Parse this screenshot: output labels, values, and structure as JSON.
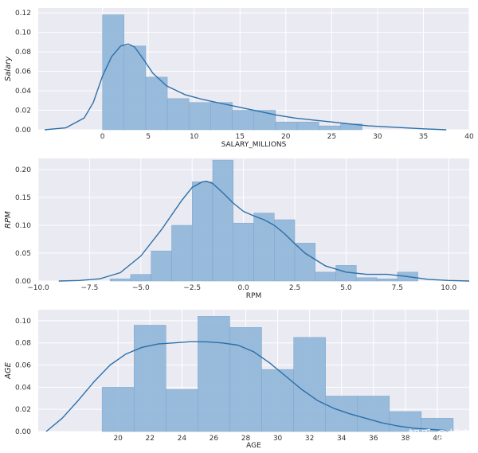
{
  "colors": {
    "plot_background": "#eaeaf2",
    "grid": "#ffffff",
    "bar_fill": "#8fb5d8",
    "bar_stroke": "#7ba6cf",
    "kde_line": "#2b6fa8"
  },
  "watermark": "知乎 @胡言",
  "chart_data": [
    {
      "type": "bar",
      "xlabel": "SALARY_MILLIONS",
      "ylabel": "Salary",
      "xlim": [
        -7,
        40
      ],
      "ylim": [
        0,
        0.125
      ],
      "xticks": [
        0,
        5,
        10,
        15,
        20,
        25,
        30,
        35,
        40
      ],
      "xtick_labels": [
        "0",
        "5",
        "10",
        "15",
        "20",
        "25",
        "30",
        "35",
        "40"
      ],
      "yticks": [
        0.0,
        0.02,
        0.04,
        0.06,
        0.08,
        0.1,
        0.12
      ],
      "ytick_labels": [
        "0.00",
        "0.02",
        "0.04",
        "0.06",
        "0.08",
        "0.10",
        "0.12"
      ],
      "bins": [
        {
          "x0": 0.0,
          "x1": 2.36,
          "value": 0.118
        },
        {
          "x0": 2.36,
          "x1": 4.72,
          "value": 0.086
        },
        {
          "x0": 4.72,
          "x1": 7.08,
          "value": 0.054
        },
        {
          "x0": 7.08,
          "x1": 9.44,
          "value": 0.032
        },
        {
          "x0": 9.44,
          "x1": 11.8,
          "value": 0.028
        },
        {
          "x0": 11.8,
          "x1": 14.16,
          "value": 0.028
        },
        {
          "x0": 14.16,
          "x1": 16.52,
          "value": 0.02
        },
        {
          "x0": 16.52,
          "x1": 18.88,
          "value": 0.02
        },
        {
          "x0": 18.88,
          "x1": 21.24,
          "value": 0.008
        },
        {
          "x0": 21.24,
          "x1": 23.6,
          "value": 0.008
        },
        {
          "x0": 23.6,
          "x1": 25.96,
          "value": 0.004
        },
        {
          "x0": 25.96,
          "x1": 28.32,
          "value": 0.006
        }
      ],
      "kde": {
        "x": [
          -6.3,
          -4,
          -2,
          -1,
          0,
          1,
          2,
          2.8,
          3.5,
          4.5,
          5.5,
          7,
          9,
          11,
          13,
          15,
          17,
          19,
          21,
          23,
          25,
          27,
          29,
          31,
          33,
          35,
          37.5
        ],
        "y": [
          0.0,
          0.002,
          0.012,
          0.028,
          0.055,
          0.075,
          0.086,
          0.088,
          0.085,
          0.072,
          0.058,
          0.045,
          0.036,
          0.031,
          0.027,
          0.023,
          0.019,
          0.015,
          0.012,
          0.01,
          0.008,
          0.006,
          0.004,
          0.003,
          0.002,
          0.001,
          0.0
        ]
      }
    },
    {
      "type": "bar",
      "xlabel": "RPM",
      "ylabel": "RPM",
      "xlim": [
        -10.0,
        11.0
      ],
      "ylim": [
        0,
        0.22
      ],
      "xticks": [
        -10.0,
        -7.5,
        -5.0,
        -2.5,
        0.0,
        2.5,
        5.0,
        7.5,
        10.0
      ],
      "xtick_labels": [
        "−10.0",
        "−7.5",
        "−5.0",
        "−2.5",
        "0.0",
        "2.5",
        "5.0",
        "7.5",
        "10.0"
      ],
      "yticks": [
        0.0,
        0.05,
        0.1,
        0.15,
        0.2
      ],
      "ytick_labels": [
        "0.00",
        "0.05",
        "0.10",
        "0.15",
        "0.20"
      ],
      "bins": [
        {
          "x0": -6.5,
          "x1": -5.5,
          "value": 0.004
        },
        {
          "x0": -5.5,
          "x1": -4.5,
          "value": 0.012
        },
        {
          "x0": -4.5,
          "x1": -3.5,
          "value": 0.054
        },
        {
          "x0": -3.5,
          "x1": -2.5,
          "value": 0.1
        },
        {
          "x0": -2.5,
          "x1": -1.5,
          "value": 0.178
        },
        {
          "x0": -1.5,
          "x1": -0.5,
          "value": 0.217
        },
        {
          "x0": -0.5,
          "x1": 0.5,
          "value": 0.104
        },
        {
          "x0": 0.5,
          "x1": 1.5,
          "value": 0.122
        },
        {
          "x0": 1.5,
          "x1": 2.5,
          "value": 0.11
        },
        {
          "x0": 2.5,
          "x1": 3.5,
          "value": 0.068
        },
        {
          "x0": 3.5,
          "x1": 4.5,
          "value": 0.016
        },
        {
          "x0": 4.5,
          "x1": 5.5,
          "value": 0.028
        },
        {
          "x0": 5.5,
          "x1": 6.5,
          "value": 0.006
        },
        {
          "x0": 6.5,
          "x1": 7.5,
          "value": 0.004
        },
        {
          "x0": 7.5,
          "x1": 8.5,
          "value": 0.016
        }
      ],
      "kde": {
        "x": [
          -9,
          -8,
          -7,
          -6,
          -5,
          -4,
          -3,
          -2.5,
          -2,
          -1.8,
          -1.5,
          -1,
          -0.5,
          0,
          0.5,
          1,
          1.5,
          2,
          2.5,
          3,
          4,
          5,
          6,
          7,
          8,
          9,
          10,
          11
        ],
        "y": [
          0.0,
          0.001,
          0.004,
          0.015,
          0.045,
          0.092,
          0.145,
          0.168,
          0.178,
          0.179,
          0.175,
          0.158,
          0.14,
          0.125,
          0.117,
          0.11,
          0.1,
          0.085,
          0.067,
          0.05,
          0.027,
          0.016,
          0.012,
          0.012,
          0.008,
          0.003,
          0.001,
          0.0
        ]
      }
    },
    {
      "type": "bar",
      "xlabel": "AGE",
      "ylabel": "AGE",
      "xlim": [
        15,
        42
      ],
      "ylim": [
        0,
        0.11
      ],
      "xticks": [
        20,
        22,
        24,
        26,
        28,
        30,
        32,
        34,
        36,
        38,
        40
      ],
      "xtick_labels": [
        "20",
        "22",
        "24",
        "26",
        "28",
        "30",
        "32",
        "34",
        "36",
        "38",
        "40"
      ],
      "yticks": [
        0.0,
        0.02,
        0.04,
        0.06,
        0.08,
        0.1
      ],
      "ytick_labels": [
        "0.00",
        "0.02",
        "0.04",
        "0.06",
        "0.08",
        "0.10"
      ],
      "bins": [
        {
          "x0": 19.0,
          "x1": 21.0,
          "value": 0.04
        },
        {
          "x0": 21.0,
          "x1": 23.0,
          "value": 0.096
        },
        {
          "x0": 23.0,
          "x1": 25.0,
          "value": 0.038
        },
        {
          "x0": 25.0,
          "x1": 27.0,
          "value": 0.104
        },
        {
          "x0": 27.0,
          "x1": 29.0,
          "value": 0.094
        },
        {
          "x0": 29.0,
          "x1": 31.0,
          "value": 0.056
        },
        {
          "x0": 31.0,
          "x1": 33.0,
          "value": 0.085
        },
        {
          "x0": 33.0,
          "x1": 35.0,
          "value": 0.032
        },
        {
          "x0": 35.0,
          "x1": 37.0,
          "value": 0.032
        },
        {
          "x0": 37.0,
          "x1": 39.0,
          "value": 0.018
        },
        {
          "x0": 39.0,
          "x1": 41.0,
          "value": 0.012
        }
      ],
      "kde": {
        "x": [
          15.5,
          16.5,
          17.5,
          18.5,
          19.5,
          20.5,
          21.5,
          22.5,
          23.5,
          24.5,
          25.5,
          26.5,
          27.5,
          28.5,
          29.5,
          30.5,
          31.5,
          32.5,
          33.5,
          34.5,
          35.5,
          36.5,
          37.5,
          38.5,
          39.5,
          40.5
        ],
        "y": [
          0.0,
          0.012,
          0.028,
          0.045,
          0.06,
          0.07,
          0.076,
          0.079,
          0.08,
          0.081,
          0.081,
          0.08,
          0.078,
          0.072,
          0.062,
          0.05,
          0.038,
          0.028,
          0.021,
          0.016,
          0.012,
          0.008,
          0.005,
          0.003,
          0.002,
          0.001
        ]
      }
    }
  ]
}
